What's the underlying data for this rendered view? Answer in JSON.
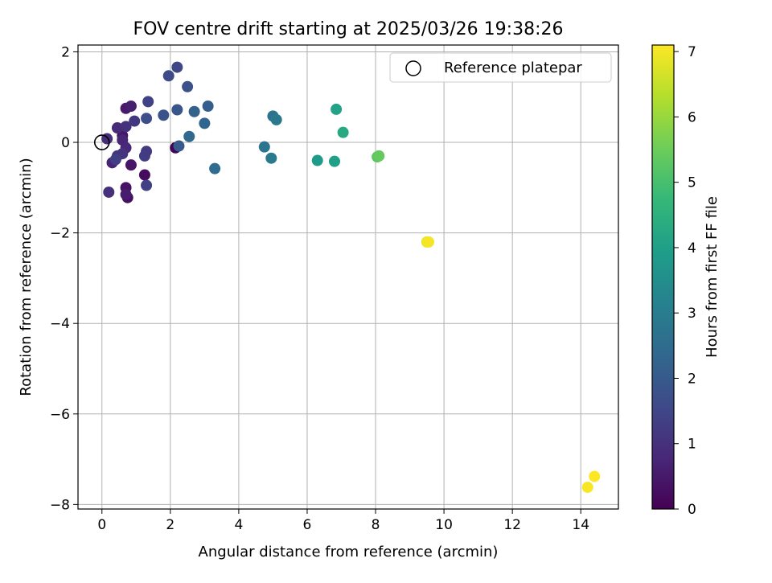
{
  "chart_data": {
    "type": "scatter",
    "title": "FOV centre drift starting at 2025/03/26 19:38:26",
    "xlabel": "Angular distance from reference (arcmin)",
    "ylabel": "Rotation from reference (arcmin)",
    "xlim": [
      -0.7,
      15.1
    ],
    "ylim": [
      -8.1,
      2.15
    ],
    "xticks": [
      0,
      2,
      4,
      6,
      8,
      10,
      12,
      14
    ],
    "xtick_labels": [
      "0",
      "2",
      "4",
      "6",
      "8",
      "10",
      "12",
      "14"
    ],
    "yticks": [
      2,
      0,
      -2,
      -4,
      -6,
      -8
    ],
    "ytick_labels": [
      "2",
      "0",
      "−2",
      "−4",
      "−6",
      "−8"
    ],
    "grid": true,
    "colormap": "viridis",
    "colorbar": {
      "label": "Hours from first FF file",
      "min": 0,
      "max": 7.1,
      "ticks": [
        0,
        1,
        2,
        3,
        4,
        5,
        6,
        7
      ],
      "tick_labels": [
        "0",
        "1",
        "2",
        "3",
        "4",
        "5",
        "6",
        "7"
      ]
    },
    "legend": {
      "position": "top-right",
      "entries": [
        {
          "label": "Reference platepar",
          "marker": "open-circle"
        }
      ]
    },
    "reference_point": {
      "x": 0,
      "y": 0
    },
    "points": [
      {
        "x": 2.15,
        "y": -0.12,
        "c": 0.05
      },
      {
        "x": 1.25,
        "y": -0.72,
        "c": 0.2
      },
      {
        "x": 0.75,
        "y": -1.22,
        "c": 0.3
      },
      {
        "x": 0.7,
        "y": -1.0,
        "c": 0.35
      },
      {
        "x": 0.85,
        "y": -0.5,
        "c": 0.4
      },
      {
        "x": 0.6,
        "y": 0.15,
        "c": 0.45
      },
      {
        "x": 0.7,
        "y": 0.75,
        "c": 0.5
      },
      {
        "x": 0.7,
        "y": -1.15,
        "c": 0.55
      },
      {
        "x": 0.85,
        "y": 0.8,
        "c": 0.6
      },
      {
        "x": 0.3,
        "y": -0.45,
        "c": 0.7
      },
      {
        "x": 0.6,
        "y": 0.05,
        "c": 0.75
      },
      {
        "x": 0.7,
        "y": -0.12,
        "c": 0.8
      },
      {
        "x": 0.45,
        "y": 0.32,
        "c": 0.85
      },
      {
        "x": 0.15,
        "y": 0.08,
        "c": 0.9
      },
      {
        "x": 0.2,
        "y": -1.1,
        "c": 0.95
      },
      {
        "x": 0.7,
        "y": 0.35,
        "c": 1.0
      },
      {
        "x": 0.6,
        "y": -0.25,
        "c": 1.05
      },
      {
        "x": 0.45,
        "y": -0.3,
        "c": 1.1
      },
      {
        "x": 0.95,
        "y": 0.47,
        "c": 1.15
      },
      {
        "x": 1.3,
        "y": -0.2,
        "c": 1.2
      },
      {
        "x": 1.25,
        "y": -0.3,
        "c": 1.25
      },
      {
        "x": 0.4,
        "y": -0.38,
        "c": 1.3
      },
      {
        "x": 1.3,
        "y": -0.95,
        "c": 1.35
      },
      {
        "x": 1.35,
        "y": 0.9,
        "c": 1.4
      },
      {
        "x": 2.2,
        "y": 1.66,
        "c": 1.5
      },
      {
        "x": 1.95,
        "y": 1.47,
        "c": 1.6
      },
      {
        "x": 1.3,
        "y": 0.53,
        "c": 1.7
      },
      {
        "x": 2.5,
        "y": 1.23,
        "c": 1.75
      },
      {
        "x": 1.8,
        "y": 0.6,
        "c": 1.8
      },
      {
        "x": 2.2,
        "y": 0.72,
        "c": 1.9
      },
      {
        "x": 2.25,
        "y": -0.08,
        "c": 2.0
      },
      {
        "x": 3.1,
        "y": 0.8,
        "c": 2.1
      },
      {
        "x": 2.7,
        "y": 0.68,
        "c": 2.2
      },
      {
        "x": 3.0,
        "y": 0.42,
        "c": 2.3
      },
      {
        "x": 2.55,
        "y": 0.13,
        "c": 2.4
      },
      {
        "x": 3.3,
        "y": -0.58,
        "c": 2.5
      },
      {
        "x": 5.0,
        "y": 0.58,
        "c": 2.7
      },
      {
        "x": 4.75,
        "y": -0.1,
        "c": 2.8
      },
      {
        "x": 5.1,
        "y": 0.5,
        "c": 2.85
      },
      {
        "x": 4.95,
        "y": -0.35,
        "c": 2.9
      },
      {
        "x": 6.3,
        "y": -0.4,
        "c": 3.9
      },
      {
        "x": 6.8,
        "y": -0.42,
        "c": 4.0
      },
      {
        "x": 6.85,
        "y": 0.73,
        "c": 4.1
      },
      {
        "x": 7.05,
        "y": 0.22,
        "c": 4.3
      },
      {
        "x": 8.05,
        "y": -0.32,
        "c": 5.2
      },
      {
        "x": 8.1,
        "y": -0.3,
        "c": 5.4
      },
      {
        "x": 9.5,
        "y": -2.2,
        "c": 6.9
      },
      {
        "x": 9.55,
        "y": -2.2,
        "c": 7.0
      },
      {
        "x": 14.2,
        "y": -7.62,
        "c": 7.05
      },
      {
        "x": 14.4,
        "y": -7.38,
        "c": 7.1
      }
    ]
  }
}
